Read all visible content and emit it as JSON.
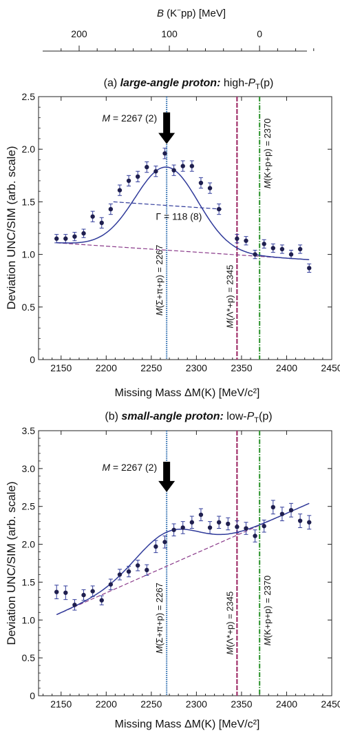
{
  "top_axis": {
    "label_var": "B",
    "label_rest": " (K",
    "label_sup": "−",
    "label_tail": "pp)   [MeV]",
    "ticks": [
      {
        "mass": 2170,
        "label": "200"
      },
      {
        "mass": 2270,
        "label": "100"
      },
      {
        "mass": 2370,
        "label": "0"
      }
    ],
    "minor_ticks": [
      2150,
      2190,
      2210,
      2230,
      2250,
      2290,
      2310,
      2330,
      2350,
      2390,
      2410,
      2430
    ]
  },
  "chart_data": [
    {
      "type": "scatter",
      "panel": "(a)",
      "title_prefix": "(a)  ",
      "title_bold": "large-angle proton:",
      "title_rest": "  high-",
      "title_P": "P",
      "title_sub": "T",
      "title_end": "(p)",
      "xlabel": "Missing Mass  ΔM(K)  [MeV/c²]",
      "ylabel": "Deviation  UNC/SIM  (arb. scale)",
      "xlim": [
        2125,
        2450
      ],
      "ylim": [
        0,
        2.5
      ],
      "xticks": [
        "2150",
        "2200",
        "2250",
        "2300",
        "2350",
        "2400",
        "2450"
      ],
      "yticks": [
        "0",
        "0.5",
        "1.0",
        "1.5",
        "2.0",
        "2.5"
      ],
      "points": [
        {
          "x": 2145,
          "y": 1.15,
          "err": 0.04
        },
        {
          "x": 2155,
          "y": 1.15,
          "err": 0.04
        },
        {
          "x": 2165,
          "y": 1.17,
          "err": 0.04
        },
        {
          "x": 2175,
          "y": 1.2,
          "err": 0.04
        },
        {
          "x": 2185,
          "y": 1.36,
          "err": 0.05
        },
        {
          "x": 2195,
          "y": 1.3,
          "err": 0.05
        },
        {
          "x": 2205,
          "y": 1.43,
          "err": 0.05
        },
        {
          "x": 2215,
          "y": 1.61,
          "err": 0.05
        },
        {
          "x": 2225,
          "y": 1.7,
          "err": 0.05
        },
        {
          "x": 2235,
          "y": 1.74,
          "err": 0.05
        },
        {
          "x": 2245,
          "y": 1.83,
          "err": 0.05
        },
        {
          "x": 2255,
          "y": 1.79,
          "err": 0.05
        },
        {
          "x": 2265,
          "y": 1.96,
          "err": 0.05
        },
        {
          "x": 2275,
          "y": 1.8,
          "err": 0.05
        },
        {
          "x": 2285,
          "y": 1.84,
          "err": 0.05
        },
        {
          "x": 2295,
          "y": 1.84,
          "err": 0.05
        },
        {
          "x": 2305,
          "y": 1.68,
          "err": 0.05
        },
        {
          "x": 2315,
          "y": 1.63,
          "err": 0.05
        },
        {
          "x": 2325,
          "y": 1.43,
          "err": 0.05
        },
        {
          "x": 2345,
          "y": 1.15,
          "err": 0.04
        },
        {
          "x": 2355,
          "y": 1.13,
          "err": 0.04
        },
        {
          "x": 2365,
          "y": 1.0,
          "err": 0.04
        },
        {
          "x": 2375,
          "y": 1.1,
          "err": 0.04
        },
        {
          "x": 2385,
          "y": 1.06,
          "err": 0.04
        },
        {
          "x": 2395,
          "y": 1.05,
          "err": 0.04
        },
        {
          "x": 2405,
          "y": 1.0,
          "err": 0.04
        },
        {
          "x": 2415,
          "y": 1.05,
          "err": 0.04
        },
        {
          "x": 2425,
          "y": 0.87,
          "err": 0.04
        }
      ],
      "fit": {
        "base_a": 1.11,
        "base_b": 0.95,
        "peak_M": 2267,
        "amp": 0.79,
        "sigma": 35
      },
      "baseline_color": "#8a3a8a",
      "fit_color": "#2f3a9a",
      "point_color": "#1f1f4f",
      "width_segment": {
        "x1": 2208,
        "y1": 1.5,
        "x2": 2328,
        "y2": 1.43
      },
      "width_label": "Γ = 118 (8)",
      "width_label_pos": {
        "x": 2255,
        "y": 1.33
      },
      "arrow_label": "M = 2267 (2)",
      "arrow_tip": {
        "x": 2267,
        "y": 2.05
      },
      "arrow_len": 0.3,
      "vlines": [
        {
          "x": 2267,
          "color": "#2c6db0",
          "style": "dotted",
          "label": "M(Σ+π+p) = 2267",
          "y_from": 0.15,
          "y_to": 1.36,
          "label_side": "left"
        },
        {
          "x": 2345,
          "color": "#a0306a",
          "style": "dashed",
          "label": "M(Λ*+p) = 2345",
          "y_from": 0.15,
          "y_to": 1.05,
          "label_side": "left"
        },
        {
          "x": 2370,
          "color": "#3a9a3a",
          "style": "dashdot",
          "label": "M(K+p+p) = 2370",
          "y_from": 1.52,
          "y_to": 2.4,
          "label_side": "right"
        }
      ]
    },
    {
      "type": "scatter",
      "panel": "(b)",
      "title_prefix": "(b)  ",
      "title_bold": "small-angle proton:",
      "title_rest": "  low-",
      "title_P": "P",
      "title_sub": "T",
      "title_end": "(p)",
      "xlabel": "Missing Mass  ΔM(K)  [MeV/c²]",
      "ylabel": "Deviation  UNC/SIM  (arb. scale)",
      "xlim": [
        2125,
        2450
      ],
      "ylim": [
        0,
        3.5
      ],
      "xticks": [
        "2150",
        "2200",
        "2250",
        "2300",
        "2350",
        "2400",
        "2450"
      ],
      "yticks": [
        "0",
        "0.5",
        "1.0",
        "1.5",
        "2.0",
        "2.5",
        "3.0",
        "3.5"
      ],
      "points": [
        {
          "x": 2145,
          "y": 1.37,
          "err": 0.09
        },
        {
          "x": 2155,
          "y": 1.36,
          "err": 0.09
        },
        {
          "x": 2165,
          "y": 1.2,
          "err": 0.07
        },
        {
          "x": 2175,
          "y": 1.33,
          "err": 0.07
        },
        {
          "x": 2185,
          "y": 1.38,
          "err": 0.07
        },
        {
          "x": 2195,
          "y": 1.26,
          "err": 0.06
        },
        {
          "x": 2205,
          "y": 1.47,
          "err": 0.07
        },
        {
          "x": 2215,
          "y": 1.6,
          "err": 0.07
        },
        {
          "x": 2225,
          "y": 1.64,
          "err": 0.07
        },
        {
          "x": 2235,
          "y": 1.72,
          "err": 0.07
        },
        {
          "x": 2245,
          "y": 1.66,
          "err": 0.07
        },
        {
          "x": 2255,
          "y": 1.97,
          "err": 0.08
        },
        {
          "x": 2265,
          "y": 2.03,
          "err": 0.08
        },
        {
          "x": 2275,
          "y": 2.19,
          "err": 0.08
        },
        {
          "x": 2285,
          "y": 2.22,
          "err": 0.08
        },
        {
          "x": 2295,
          "y": 2.29,
          "err": 0.08
        },
        {
          "x": 2305,
          "y": 2.39,
          "err": 0.08
        },
        {
          "x": 2315,
          "y": 2.22,
          "err": 0.08
        },
        {
          "x": 2325,
          "y": 2.29,
          "err": 0.08
        },
        {
          "x": 2335,
          "y": 2.27,
          "err": 0.08
        },
        {
          "x": 2345,
          "y": 2.23,
          "err": 0.08
        },
        {
          "x": 2355,
          "y": 2.21,
          "err": 0.08
        },
        {
          "x": 2365,
          "y": 2.11,
          "err": 0.08
        },
        {
          "x": 2375,
          "y": 2.24,
          "err": 0.08
        },
        {
          "x": 2385,
          "y": 2.49,
          "err": 0.09
        },
        {
          "x": 2395,
          "y": 2.4,
          "err": 0.09
        },
        {
          "x": 2405,
          "y": 2.45,
          "err": 0.09
        },
        {
          "x": 2415,
          "y": 2.31,
          "err": 0.09
        },
        {
          "x": 2425,
          "y": 2.29,
          "err": 0.09
        }
      ],
      "fit": {
        "base_a": 1.07,
        "base_b": 2.54,
        "peak_M": 2267,
        "amp": 0.45,
        "sigma": 35
      },
      "baseline_color": "#8a3a8a",
      "fit_color": "#2f3a9a",
      "point_color": "#1f1f4f",
      "arrow_label": "M = 2267 (2)",
      "arrow_tip": {
        "x": 2267,
        "y": 2.69
      },
      "arrow_len": 0.4,
      "vlines": [
        {
          "x": 2267,
          "color": "#2c6db0",
          "style": "dotted",
          "label": "M(Σ+π+p) = 2267",
          "y_from": 0.2,
          "y_to": 1.85,
          "label_side": "left"
        },
        {
          "x": 2345,
          "color": "#a0306a",
          "style": "dashed",
          "label": "M(Λ*+p) = 2345",
          "y_from": 0.2,
          "y_to": 1.72,
          "label_side": "left"
        },
        {
          "x": 2370,
          "color": "#3a9a3a",
          "style": "dashdot",
          "label": "M(K+p+p) = 2370",
          "y_from": 0.2,
          "y_to": 2.05,
          "label_side": "right"
        }
      ]
    }
  ]
}
